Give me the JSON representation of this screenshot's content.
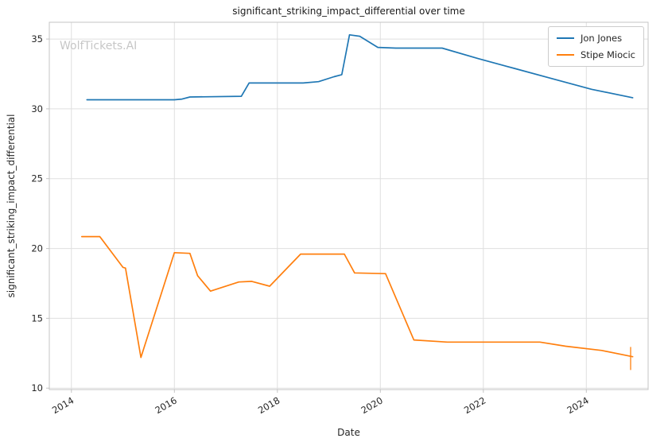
{
  "watermark": "WolfTickets.AI",
  "colors": {
    "grid": "#dfdfdf",
    "spine": "#c4c4c4",
    "tick_label": "#262626",
    "title": "#1a1a1a",
    "watermark": "#c6c6c6",
    "background": "#ffffff",
    "series_blue": "#1f77b4",
    "series_orange": "#ff7f0e"
  },
  "chart_data": {
    "type": "line",
    "title": "significant_striking_impact_differential over time",
    "xlabel": "Date",
    "ylabel": "significant_striking_impact_differential",
    "xlim": [
      2013.57,
      2025.2
    ],
    "ylim": [
      9.9,
      36.2
    ],
    "x_ticks": [
      2014,
      2016,
      2018,
      2020,
      2022,
      2024
    ],
    "y_ticks": [
      10,
      15,
      20,
      25,
      30,
      35
    ],
    "grid": true,
    "legend_position": "upper right",
    "series": [
      {
        "name": "Jon Jones",
        "color": "#1f77b4",
        "points": [
          [
            2014.3,
            30.65
          ],
          [
            2016.0,
            30.65
          ],
          [
            2016.15,
            30.7
          ],
          [
            2016.3,
            30.85
          ],
          [
            2017.3,
            30.9
          ],
          [
            2017.45,
            31.85
          ],
          [
            2018.5,
            31.85
          ],
          [
            2018.8,
            31.95
          ],
          [
            2019.1,
            32.3
          ],
          [
            2019.25,
            32.45
          ],
          [
            2019.4,
            35.3
          ],
          [
            2019.6,
            35.2
          ],
          [
            2019.95,
            34.4
          ],
          [
            2020.3,
            34.35
          ],
          [
            2021.2,
            34.35
          ],
          [
            2021.9,
            33.6
          ],
          [
            2022.6,
            32.9
          ],
          [
            2023.3,
            32.2
          ],
          [
            2024.1,
            31.4
          ],
          [
            2024.9,
            30.8
          ]
        ]
      },
      {
        "name": "Stipe Miocic",
        "color": "#ff7f0e",
        "points": [
          [
            2014.2,
            20.85
          ],
          [
            2014.55,
            20.85
          ],
          [
            2015.0,
            18.65
          ],
          [
            2015.05,
            18.6
          ],
          [
            2015.35,
            12.2
          ],
          [
            2016.0,
            19.7
          ],
          [
            2016.3,
            19.65
          ],
          [
            2016.45,
            18.05
          ],
          [
            2016.7,
            16.95
          ],
          [
            2017.25,
            17.6
          ],
          [
            2017.5,
            17.65
          ],
          [
            2017.85,
            17.3
          ],
          [
            2018.45,
            19.6
          ],
          [
            2019.3,
            19.6
          ],
          [
            2019.5,
            18.25
          ],
          [
            2020.1,
            18.2
          ],
          [
            2020.65,
            13.45
          ],
          [
            2021.3,
            13.3
          ],
          [
            2023.1,
            13.3
          ],
          [
            2023.6,
            13.0
          ],
          [
            2024.3,
            12.7
          ],
          [
            2024.9,
            12.25
          ]
        ]
      }
    ],
    "error_bars": [
      {
        "series": "Stipe Miocic",
        "x": 2024.86,
        "low": 11.3,
        "high": 12.95,
        "color": "#ff7f0e"
      }
    ]
  }
}
